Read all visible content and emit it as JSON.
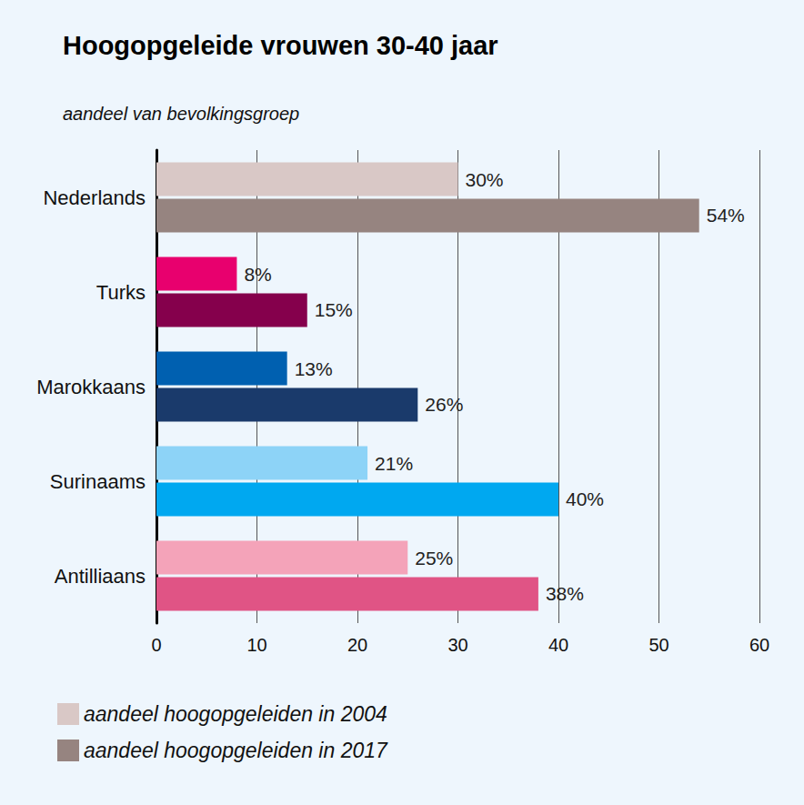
{
  "chart_data": {
    "type": "bar",
    "orientation": "horizontal",
    "title": "Hoogopgeleide vrouwen 30-40 jaar",
    "subtitle": "aandeel van bevolkingsgroep",
    "categories": [
      "Nederlands",
      "Turks",
      "Marokkaans",
      "Surinaams",
      "Antilliaans"
    ],
    "series": [
      {
        "name": "aandeel hoogopgeleiden in 2004",
        "color": "#d9c8c6",
        "colors": [
          "#d9c8c6",
          "#e8006e",
          "#0060b0",
          "#8dd3f7",
          "#f4a3b9"
        ],
        "values": [
          30,
          8,
          13,
          21,
          25
        ],
        "value_labels": [
          "30%",
          "8%",
          "13%",
          "21%",
          "25%"
        ]
      },
      {
        "name": "aandeel hoogopgeleiden in 2017",
        "color": "#968480",
        "colors": [
          "#968480",
          "#85004c",
          "#1a3a6b",
          "#00a8f0",
          "#e05485"
        ],
        "values": [
          54,
          15,
          26,
          40,
          38
        ],
        "value_labels": [
          "54%",
          "15%",
          "26%",
          "40%",
          "38%"
        ]
      }
    ],
    "xlim": [
      0,
      60
    ],
    "xticks": [
      0,
      10,
      20,
      30,
      40,
      50,
      60
    ],
    "grid": true,
    "legend": "bottom-left",
    "data_labels": true
  }
}
